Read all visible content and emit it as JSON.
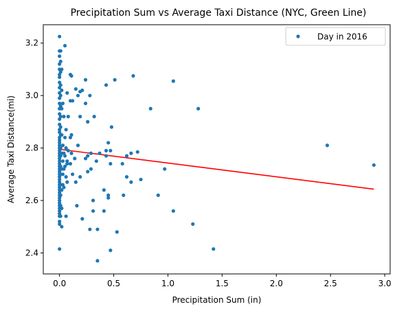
{
  "chart_data": {
    "type": "scatter",
    "title": "Precipitation Sum vs Average Taxi Distance (NYC, Green Line)",
    "xlabel": "Precipitation Sum (in)",
    "ylabel": "Average Taxi Distance(mi)",
    "xlim": [
      -0.15,
      3.05
    ],
    "ylim": [
      2.32,
      3.27
    ],
    "xticks": [
      0.0,
      0.5,
      1.0,
      1.5,
      2.0,
      2.5,
      3.0
    ],
    "xtick_labels": [
      "0.0",
      "0.5",
      "1.0",
      "1.5",
      "2.0",
      "2.5",
      "3.0"
    ],
    "yticks": [
      2.4,
      2.6,
      2.8,
      3.0,
      3.2
    ],
    "ytick_labels": [
      "2.4",
      "2.6",
      "2.8",
      "3.0",
      "3.2"
    ],
    "grid": false,
    "legend": {
      "position": "top-right",
      "entries": [
        "Day in 2016"
      ]
    },
    "series": [
      {
        "name": "Day in 2016",
        "kind": "scatter",
        "color": "#1f77b4",
        "points": [
          [
            0.0,
            3.225
          ],
          [
            0.0,
            3.17
          ],
          [
            0.0,
            3.15
          ],
          [
            0.0,
            3.12
          ],
          [
            0.0,
            3.1
          ],
          [
            0.0,
            3.08
          ],
          [
            0.0,
            3.07
          ],
          [
            0.0,
            3.05
          ],
          [
            0.0,
            3.03
          ],
          [
            0.0,
            3.01
          ],
          [
            0.0,
            2.99
          ],
          [
            0.0,
            2.97
          ],
          [
            0.0,
            2.95
          ],
          [
            0.0,
            2.93
          ],
          [
            0.0,
            2.91
          ],
          [
            0.0,
            2.89
          ],
          [
            0.0,
            2.87
          ],
          [
            0.0,
            2.86
          ],
          [
            0.0,
            2.84
          ],
          [
            0.0,
            2.83
          ],
          [
            0.0,
            2.82
          ],
          [
            0.0,
            2.81
          ],
          [
            0.0,
            2.8
          ],
          [
            0.0,
            2.79
          ],
          [
            0.0,
            2.78
          ],
          [
            0.0,
            2.77
          ],
          [
            0.0,
            2.76
          ],
          [
            0.0,
            2.75
          ],
          [
            0.0,
            2.74
          ],
          [
            0.0,
            2.73
          ],
          [
            0.0,
            2.72
          ],
          [
            0.0,
            2.71
          ],
          [
            0.0,
            2.7
          ],
          [
            0.0,
            2.69
          ],
          [
            0.0,
            2.68
          ],
          [
            0.0,
            2.67
          ],
          [
            0.0,
            2.66
          ],
          [
            0.0,
            2.65
          ],
          [
            0.0,
            2.64
          ],
          [
            0.0,
            2.63
          ],
          [
            0.0,
            2.62
          ],
          [
            0.0,
            2.61
          ],
          [
            0.0,
            2.6
          ],
          [
            0.0,
            2.59
          ],
          [
            0.0,
            2.58
          ],
          [
            0.0,
            2.57
          ],
          [
            0.0,
            2.56
          ],
          [
            0.0,
            2.55
          ],
          [
            0.0,
            2.54
          ],
          [
            0.0,
            2.52
          ],
          [
            0.0,
            2.51
          ],
          [
            0.0,
            2.415
          ],
          [
            0.01,
            3.17
          ],
          [
            0.01,
            3.13
          ],
          [
            0.01,
            3.09
          ],
          [
            0.01,
            3.04
          ],
          [
            0.01,
            3.0
          ],
          [
            0.01,
            2.96
          ],
          [
            0.01,
            2.92
          ],
          [
            0.01,
            2.88
          ],
          [
            0.01,
            2.85
          ],
          [
            0.01,
            2.8
          ],
          [
            0.01,
            2.77
          ],
          [
            0.01,
            2.73
          ],
          [
            0.01,
            2.7
          ],
          [
            0.01,
            2.66
          ],
          [
            0.01,
            2.62
          ],
          [
            0.01,
            2.58
          ],
          [
            0.01,
            2.54
          ],
          [
            0.02,
            3.1
          ],
          [
            0.02,
            3.02
          ],
          [
            0.02,
            2.95
          ],
          [
            0.02,
            2.85
          ],
          [
            0.02,
            2.78
          ],
          [
            0.02,
            2.72
          ],
          [
            0.02,
            2.64
          ],
          [
            0.02,
            2.57
          ],
          [
            0.02,
            2.5
          ],
          [
            0.03,
            2.97
          ],
          [
            0.03,
            2.81
          ],
          [
            0.03,
            2.75
          ],
          [
            0.03,
            2.7
          ],
          [
            0.03,
            2.66
          ],
          [
            0.04,
            2.92
          ],
          [
            0.04,
            2.78
          ],
          [
            0.04,
            2.72
          ],
          [
            0.04,
            2.65
          ],
          [
            0.05,
            3.19
          ],
          [
            0.05,
            2.84
          ],
          [
            0.05,
            2.77
          ],
          [
            0.05,
            2.73
          ],
          [
            0.06,
            2.87
          ],
          [
            0.06,
            2.8
          ],
          [
            0.06,
            2.69
          ],
          [
            0.06,
            2.54
          ],
          [
            0.07,
            3.01
          ],
          [
            0.07,
            2.75
          ],
          [
            0.07,
            2.74
          ],
          [
            0.07,
            2.67
          ],
          [
            0.08,
            2.92
          ],
          [
            0.08,
            2.79
          ],
          [
            0.1,
            3.08
          ],
          [
            0.1,
            2.98
          ],
          [
            0.1,
            2.84
          ],
          [
            0.1,
            2.74
          ],
          [
            0.11,
            3.075
          ],
          [
            0.11,
            2.85
          ],
          [
            0.11,
            2.78
          ],
          [
            0.12,
            2.98
          ],
          [
            0.12,
            2.7
          ],
          [
            0.14,
            2.76
          ],
          [
            0.15,
            3.025
          ],
          [
            0.15,
            2.67
          ],
          [
            0.16,
            2.58
          ],
          [
            0.17,
            3.0
          ],
          [
            0.17,
            2.81
          ],
          [
            0.19,
            3.015
          ],
          [
            0.19,
            2.92
          ],
          [
            0.19,
            2.69
          ],
          [
            0.21,
            3.02
          ],
          [
            0.21,
            2.53
          ],
          [
            0.24,
            3.06
          ],
          [
            0.24,
            2.97
          ],
          [
            0.24,
            2.76
          ],
          [
            0.26,
            2.9
          ],
          [
            0.26,
            2.77
          ],
          [
            0.26,
            2.71
          ],
          [
            0.28,
            3.0
          ],
          [
            0.28,
            2.49
          ],
          [
            0.29,
            2.78
          ],
          [
            0.29,
            2.72
          ],
          [
            0.31,
            2.6
          ],
          [
            0.31,
            2.56
          ],
          [
            0.32,
            2.92
          ],
          [
            0.34,
            2.75
          ],
          [
            0.35,
            2.37
          ],
          [
            0.35,
            2.49
          ],
          [
            0.37,
            2.78
          ],
          [
            0.41,
            2.64
          ],
          [
            0.41,
            2.56
          ],
          [
            0.43,
            3.04
          ],
          [
            0.43,
            2.79
          ],
          [
            0.43,
            2.77
          ],
          [
            0.45,
            2.82
          ],
          [
            0.45,
            2.62
          ],
          [
            0.45,
            2.61
          ],
          [
            0.47,
            2.79
          ],
          [
            0.47,
            2.74
          ],
          [
            0.47,
            2.41
          ],
          [
            0.48,
            2.88
          ],
          [
            0.51,
            3.06
          ],
          [
            0.53,
            2.48
          ],
          [
            0.58,
            2.74
          ],
          [
            0.59,
            2.62
          ],
          [
            0.62,
            2.77
          ],
          [
            0.62,
            2.69
          ],
          [
            0.66,
            2.78
          ],
          [
            0.66,
            2.67
          ],
          [
            0.68,
            3.075
          ],
          [
            0.72,
            2.785
          ],
          [
            0.75,
            2.68
          ],
          [
            0.84,
            2.95
          ],
          [
            0.91,
            2.62
          ],
          [
            0.97,
            2.72
          ],
          [
            1.05,
            3.055
          ],
          [
            1.05,
            2.56
          ],
          [
            1.23,
            2.51
          ],
          [
            1.28,
            2.95
          ],
          [
            1.42,
            2.415
          ],
          [
            2.47,
            2.81
          ],
          [
            2.9,
            2.735
          ]
        ]
      },
      {
        "kind": "line",
        "color": "#ff0000",
        "x": [
          0.0,
          2.9
        ],
        "y": [
          2.795,
          2.643
        ]
      }
    ]
  }
}
